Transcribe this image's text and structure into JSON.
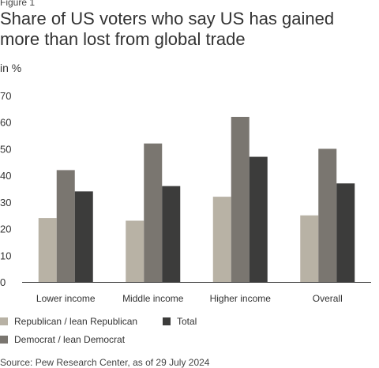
{
  "figure_label": "Figure 1",
  "source": "Source: Pew Research Center, as of 29 July 2024",
  "chart_data": {
    "type": "bar",
    "title": "Share of US voters who say US has gained more than lost from global trade",
    "unit_label": "in %",
    "categories": [
      "Lower income",
      "Middle income",
      "Higher income",
      "Overall"
    ],
    "series": [
      {
        "name": "Republican / lean Republican",
        "color": "#b8b2a5",
        "values": [
          24,
          23,
          32,
          25
        ]
      },
      {
        "name": "Democrat / lean Democrat",
        "color": "#7a7670",
        "values": [
          42,
          52,
          62,
          50
        ]
      },
      {
        "name": "Total",
        "color": "#3c3c3b",
        "values": [
          34,
          36,
          47,
          37
        ]
      }
    ],
    "ylim": [
      0,
      70
    ],
    "yticks": [
      0,
      10,
      20,
      30,
      40,
      50,
      60,
      70
    ],
    "grid": false,
    "legend_placement": "bottom"
  }
}
